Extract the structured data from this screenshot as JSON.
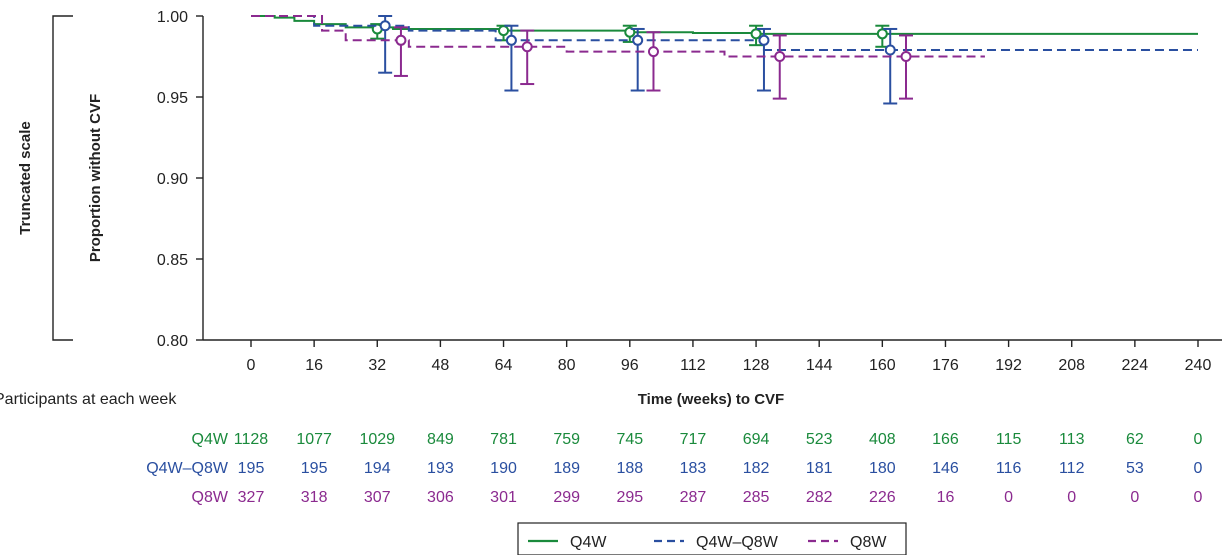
{
  "chart_data": {
    "type": "line",
    "ylabel": "Proportion without CVF",
    "side_label": "Truncated scale",
    "xlabel": "Time (weeks) to CVF",
    "xlim": [
      0,
      240
    ],
    "ylim": [
      0.8,
      1.0
    ],
    "xticks": [
      0,
      16,
      32,
      48,
      64,
      80,
      96,
      112,
      128,
      144,
      160,
      176,
      192,
      208,
      224,
      240
    ],
    "yticks": [
      {
        "value": 0.8,
        "label": "0.80"
      },
      {
        "value": 0.85,
        "label": "0.85"
      },
      {
        "value": 0.9,
        "label": "0.90"
      },
      {
        "value": 0.95,
        "label": "0.95"
      },
      {
        "value": 1.0,
        "label": "1.00"
      }
    ],
    "grid": false,
    "legend_position": "bottom-center",
    "series": [
      {
        "name": "Q4W",
        "color": "#1a8a3c",
        "dash": "solid",
        "steps": [
          [
            0,
            1.0
          ],
          [
            6,
            0.999
          ],
          [
            11,
            0.997
          ],
          [
            16,
            0.995
          ],
          [
            24,
            0.993
          ],
          [
            36,
            0.992
          ],
          [
            64,
            0.991
          ],
          [
            96,
            0.99
          ],
          [
            112,
            0.9895
          ],
          [
            128,
            0.989
          ],
          [
            240,
            0.989
          ]
        ],
        "markers": [
          {
            "x": 32,
            "y": 0.992,
            "lo": 0.986,
            "hi": 0.995
          },
          {
            "x": 64,
            "y": 0.991,
            "lo": 0.985,
            "hi": 0.994
          },
          {
            "x": 96,
            "y": 0.99,
            "lo": 0.984,
            "hi": 0.994
          },
          {
            "x": 128,
            "y": 0.989,
            "lo": 0.982,
            "hi": 0.994
          },
          {
            "x": 160,
            "y": 0.989,
            "lo": 0.981,
            "hi": 0.994
          }
        ]
      },
      {
        "name": "Q4W–Q8W",
        "color": "#2a4fa0",
        "dash": "dashed",
        "steps": [
          [
            0,
            1.0
          ],
          [
            16,
            0.994
          ],
          [
            40,
            0.991
          ],
          [
            62,
            0.985
          ],
          [
            100,
            0.985
          ],
          [
            130,
            0.979
          ],
          [
            240,
            0.979
          ]
        ],
        "markers": [
          {
            "x": 34,
            "y": 0.994,
            "lo": 0.965,
            "hi": 1.0
          },
          {
            "x": 66,
            "y": 0.985,
            "lo": 0.954,
            "hi": 0.994
          },
          {
            "x": 98,
            "y": 0.985,
            "lo": 0.954,
            "hi": 0.992
          },
          {
            "x": 130,
            "y": 0.985,
            "lo": 0.954,
            "hi": 0.992
          },
          {
            "x": 162,
            "y": 0.979,
            "lo": 0.946,
            "hi": 0.992
          }
        ]
      },
      {
        "name": "Q8W",
        "color": "#8b2a8f",
        "dash": "dashed",
        "steps": [
          [
            0,
            1.0
          ],
          [
            12,
            1.0
          ],
          [
            18,
            0.991
          ],
          [
            24,
            0.985
          ],
          [
            40,
            0.981
          ],
          [
            80,
            0.978
          ],
          [
            120,
            0.975
          ],
          [
            186,
            0.975
          ]
        ],
        "markers": [
          {
            "x": 38,
            "y": 0.985,
            "lo": 0.963,
            "hi": 0.993
          },
          {
            "x": 70,
            "y": 0.981,
            "lo": 0.958,
            "hi": 0.991
          },
          {
            "x": 102,
            "y": 0.978,
            "lo": 0.954,
            "hi": 0.99
          },
          {
            "x": 134,
            "y": 0.975,
            "lo": 0.949,
            "hi": 0.988
          },
          {
            "x": 166,
            "y": 0.975,
            "lo": 0.949,
            "hi": 0.988
          }
        ]
      }
    ],
    "risk_table": {
      "title": "Participants at each week",
      "rows": [
        {
          "label": "Q4W",
          "color": "#1a8a3c",
          "values": [
            "1128",
            "1077",
            "1029",
            "849",
            "781",
            "759",
            "745",
            "717",
            "694",
            "523",
            "408",
            "166",
            "115",
            "113",
            "62",
            "0"
          ]
        },
        {
          "label": "Q4W–Q8W",
          "color": "#2a4fa0",
          "values": [
            "195",
            "195",
            "194",
            "193",
            "190",
            "189",
            "188",
            "183",
            "182",
            "181",
            "180",
            "146",
            "116",
            "112",
            "53",
            "0"
          ]
        },
        {
          "label": "Q8W",
          "color": "#8b2a8f",
          "values": [
            "327",
            "318",
            "307",
            "306",
            "301",
            "299",
            "295",
            "287",
            "285",
            "282",
            "226",
            "16",
            "0",
            "0",
            "0",
            "0"
          ]
        }
      ]
    }
  }
}
